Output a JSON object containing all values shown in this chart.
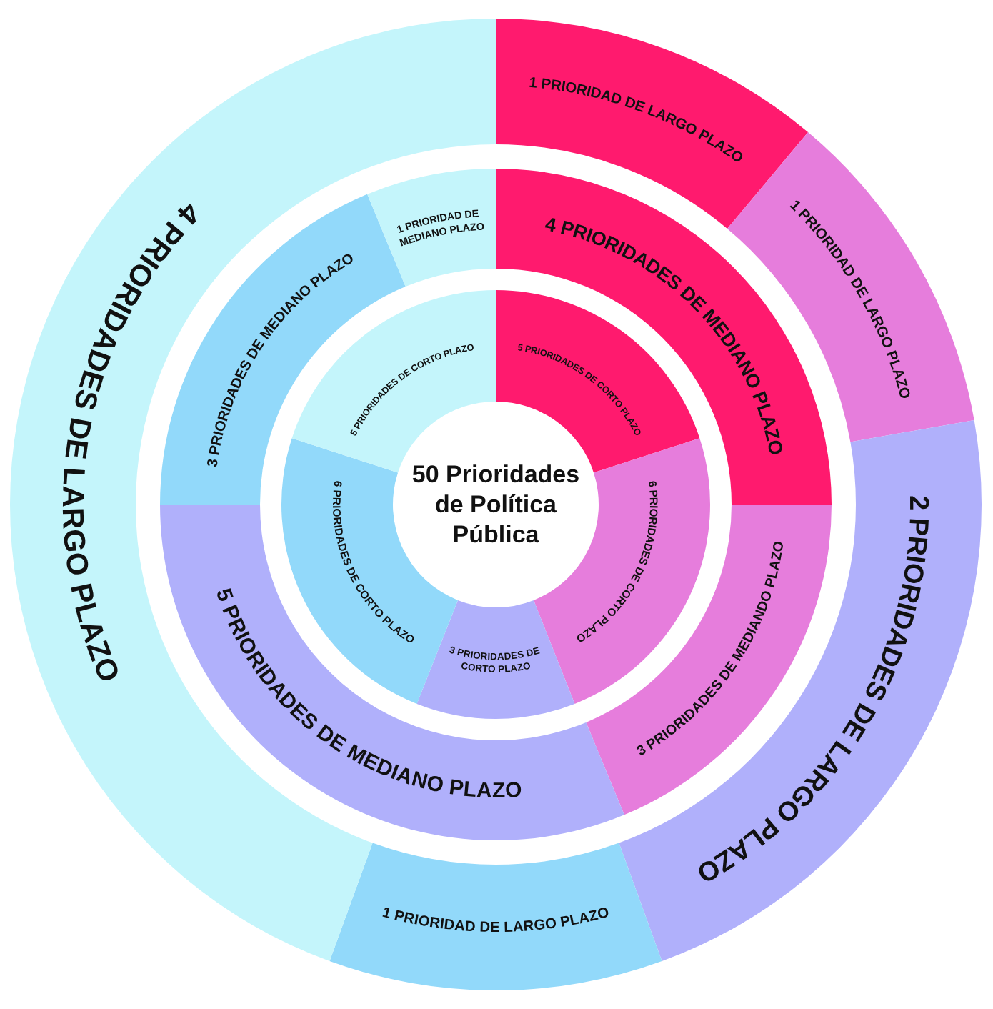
{
  "chart_data": {
    "type": "donut",
    "title": "50 Prioridades de Política Pública",
    "categories": [
      null,
      null,
      null,
      null,
      null
    ],
    "colors": [
      "#ff1a6e",
      "#e67ddc",
      "#b0b0fb",
      "#92d9fa",
      "#c4f5fb"
    ],
    "series": [
      {
        "values": [
          5,
          6,
          3,
          6,
          5
        ],
        "value_labels": [
          "5 PRIORIDADES DE CORTO PLAZO",
          "6 PRIORIDADES DE CORTO PLAZO",
          "3 PRIORIDADES DE CORTO PLAZO",
          "6 PRIORIDADES DE CORTO PLAZO",
          "5 PRIORIDADES DE CORTO PLAZO"
        ]
      },
      {
        "values": [
          4,
          3,
          5,
          3,
          1
        ],
        "value_labels": [
          "4 PRIORIDADES DE MEDIANO PLAZO",
          "3 PRIORIDADES DE MEDIANDO PLAZO",
          "5 PRIORIDADES DE MEDIANO PLAZO",
          "3 PRIORIDADES DE MEDIANO PLAZO",
          "1 PRIORIDAD DE MEDIANO PLAZO"
        ]
      },
      {
        "values": [
          1,
          1,
          2,
          1,
          4
        ],
        "value_labels": [
          "1 PRIORIDAD DE LARGO PLAZO",
          "1 PRIORIDAD DE LARGO PLAZO",
          "2 PRIORIDADES DE LARGO PLAZO",
          "1 PRIORIDAD DE LARGO PLAZO",
          "4 PRIORIDADES DE LARGO PLAZO"
        ]
      }
    ]
  }
}
